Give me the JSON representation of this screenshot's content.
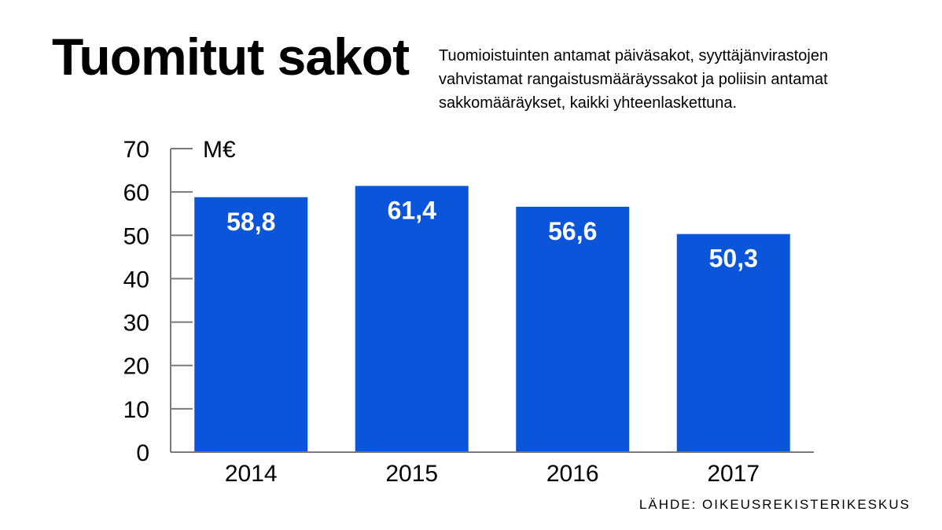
{
  "title": "Tuomitut sakot",
  "subtitle": "Tuomioistuinten antamat päiväsakot, syyttäjänvirastojen vahvistamat rangaistusmääräyssakot ja poliisin antamat sakkomääräykset, kaikki yhteenlaskettuna.",
  "source": "LÄHDE: OIKEUSREKISTERIKESKUS",
  "colors": {
    "bar": "#0a55d9",
    "axis": "#7a7a7a",
    "label_on_bar": "#ffffff",
    "text": "#000000"
  },
  "chart_data": {
    "type": "bar",
    "title": "Tuomitut sakot",
    "xlabel": "",
    "ylabel": "M€",
    "unit_label": "M€",
    "categories": [
      "2014",
      "2015",
      "2016",
      "2017"
    ],
    "values": [
      58.8,
      61.4,
      56.6,
      50.3
    ],
    "value_labels": [
      "58,8",
      "61,4",
      "56,6",
      "50,3"
    ],
    "ylim": [
      0,
      70
    ],
    "yticks": [
      0,
      10,
      20,
      30,
      40,
      50,
      60,
      70
    ],
    "ytick_labels": [
      "0",
      "10",
      "20",
      "30",
      "40",
      "50",
      "60",
      "70"
    ],
    "grid": false,
    "legend": "none"
  }
}
